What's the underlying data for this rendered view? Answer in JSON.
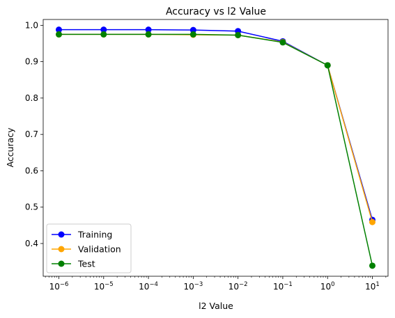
{
  "chart_data": {
    "type": "line",
    "title": "Accuracy vs l2 Value",
    "xlabel": "l2 Value",
    "ylabel": "Accuracy",
    "x_scale": "log10",
    "x": [
      1e-06,
      1e-05,
      0.0001,
      0.001,
      0.01,
      0.1,
      1,
      10
    ],
    "x_tick_labels": [
      {
        "base": "10",
        "exp": "−6"
      },
      {
        "base": "10",
        "exp": "−5"
      },
      {
        "base": "10",
        "exp": "−4"
      },
      {
        "base": "10",
        "exp": "−3"
      },
      {
        "base": "10",
        "exp": "−2"
      },
      {
        "base": "10",
        "exp": "−1"
      },
      {
        "base": "10",
        "exp": "0"
      },
      {
        "base": "10",
        "exp": "1"
      }
    ],
    "y_ticks": [
      0.4,
      0.5,
      0.6,
      0.7,
      0.8,
      0.9,
      1.0
    ],
    "y_tick_labels": [
      "0.4",
      "0.5",
      "0.6",
      "0.7",
      "0.8",
      "0.9",
      "1.0"
    ],
    "ylim": [
      0.31,
      1.016
    ],
    "grid": false,
    "legend_position": "lower-left",
    "series": [
      {
        "name": "Training",
        "color": "#0000ff",
        "marker": "circle",
        "values": [
          0.988,
          0.988,
          0.988,
          0.987,
          0.984,
          0.956,
          0.89,
          0.465
        ]
      },
      {
        "name": "Validation",
        "color": "#ffa500",
        "marker": "circle",
        "values": [
          0.975,
          0.975,
          0.975,
          0.974,
          0.973,
          0.954,
          0.89,
          0.459
        ]
      },
      {
        "name": "Test",
        "color": "#008000",
        "marker": "circle",
        "values": [
          0.975,
          0.975,
          0.975,
          0.975,
          0.973,
          0.953,
          0.89,
          0.339
        ]
      }
    ]
  }
}
